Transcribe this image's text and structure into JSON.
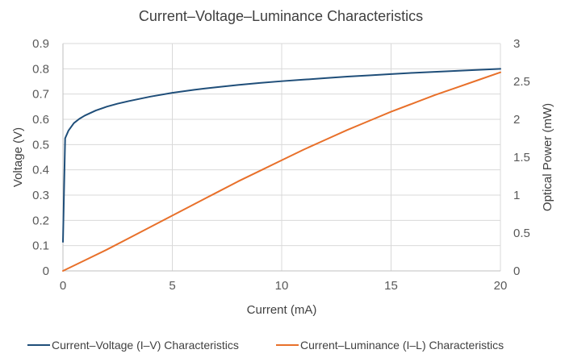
{
  "chart_data": {
    "type": "line",
    "title": "Current–Voltage–Luminance Characteristics",
    "xlabel": "Current (mA)",
    "ylabel": "Voltage (V)",
    "y2label": "Optical Power (mW)",
    "xlim": [
      0,
      20
    ],
    "ylim": [
      0,
      0.9
    ],
    "y2lim": [
      0,
      3
    ],
    "xticks": [
      0,
      5,
      10,
      15,
      20
    ],
    "yticks": [
      0,
      0.1,
      0.2,
      0.3,
      0.4,
      0.5,
      0.6,
      0.7,
      0.8,
      0.9
    ],
    "y2ticks": [
      0,
      0.5,
      1,
      1.5,
      2,
      2.5,
      3
    ],
    "xtick_labels": [
      "0",
      "5",
      "10",
      "15",
      "20"
    ],
    "ytick_labels": [
      "0",
      "0.1",
      "0.2",
      "0.3",
      "0.4",
      "0.5",
      "0.6",
      "0.7",
      "0.8",
      "0.9"
    ],
    "y2tick_labels": [
      "0",
      "0.5",
      "1",
      "1.5",
      "2",
      "2.5",
      "3"
    ],
    "grid": {
      "horizontal": true,
      "vertical": true
    },
    "legend_position": "bottom",
    "series": [
      {
        "name": "Current–Voltage (I–V) Characteristics",
        "axis": "left",
        "color": "#1f4e79",
        "x": [
          0,
          0.1,
          0.25,
          0.5,
          0.75,
          1,
          1.5,
          2,
          2.5,
          3,
          4,
          5,
          6,
          7,
          8,
          9,
          10,
          11,
          12,
          13,
          14,
          15,
          16,
          17,
          18,
          19,
          20
        ],
        "y": [
          0.115,
          0.525,
          0.555,
          0.585,
          0.602,
          0.615,
          0.635,
          0.65,
          0.662,
          0.672,
          0.69,
          0.705,
          0.717,
          0.727,
          0.736,
          0.744,
          0.751,
          0.757,
          0.763,
          0.769,
          0.774,
          0.779,
          0.784,
          0.788,
          0.792,
          0.796,
          0.8
        ]
      },
      {
        "name": "Current–Luminance (I–L) Characteristics",
        "axis": "right",
        "color": "#e8702a",
        "x": [
          0,
          1,
          2,
          3,
          4,
          5,
          6,
          7,
          8,
          9,
          10,
          11,
          12,
          13,
          14,
          15,
          16,
          17,
          18,
          19,
          20
        ],
        "y": [
          0.0,
          0.14,
          0.28,
          0.43,
          0.58,
          0.73,
          0.88,
          1.03,
          1.18,
          1.32,
          1.46,
          1.6,
          1.73,
          1.86,
          1.98,
          2.1,
          2.21,
          2.32,
          2.42,
          2.52,
          2.62
        ]
      }
    ]
  }
}
